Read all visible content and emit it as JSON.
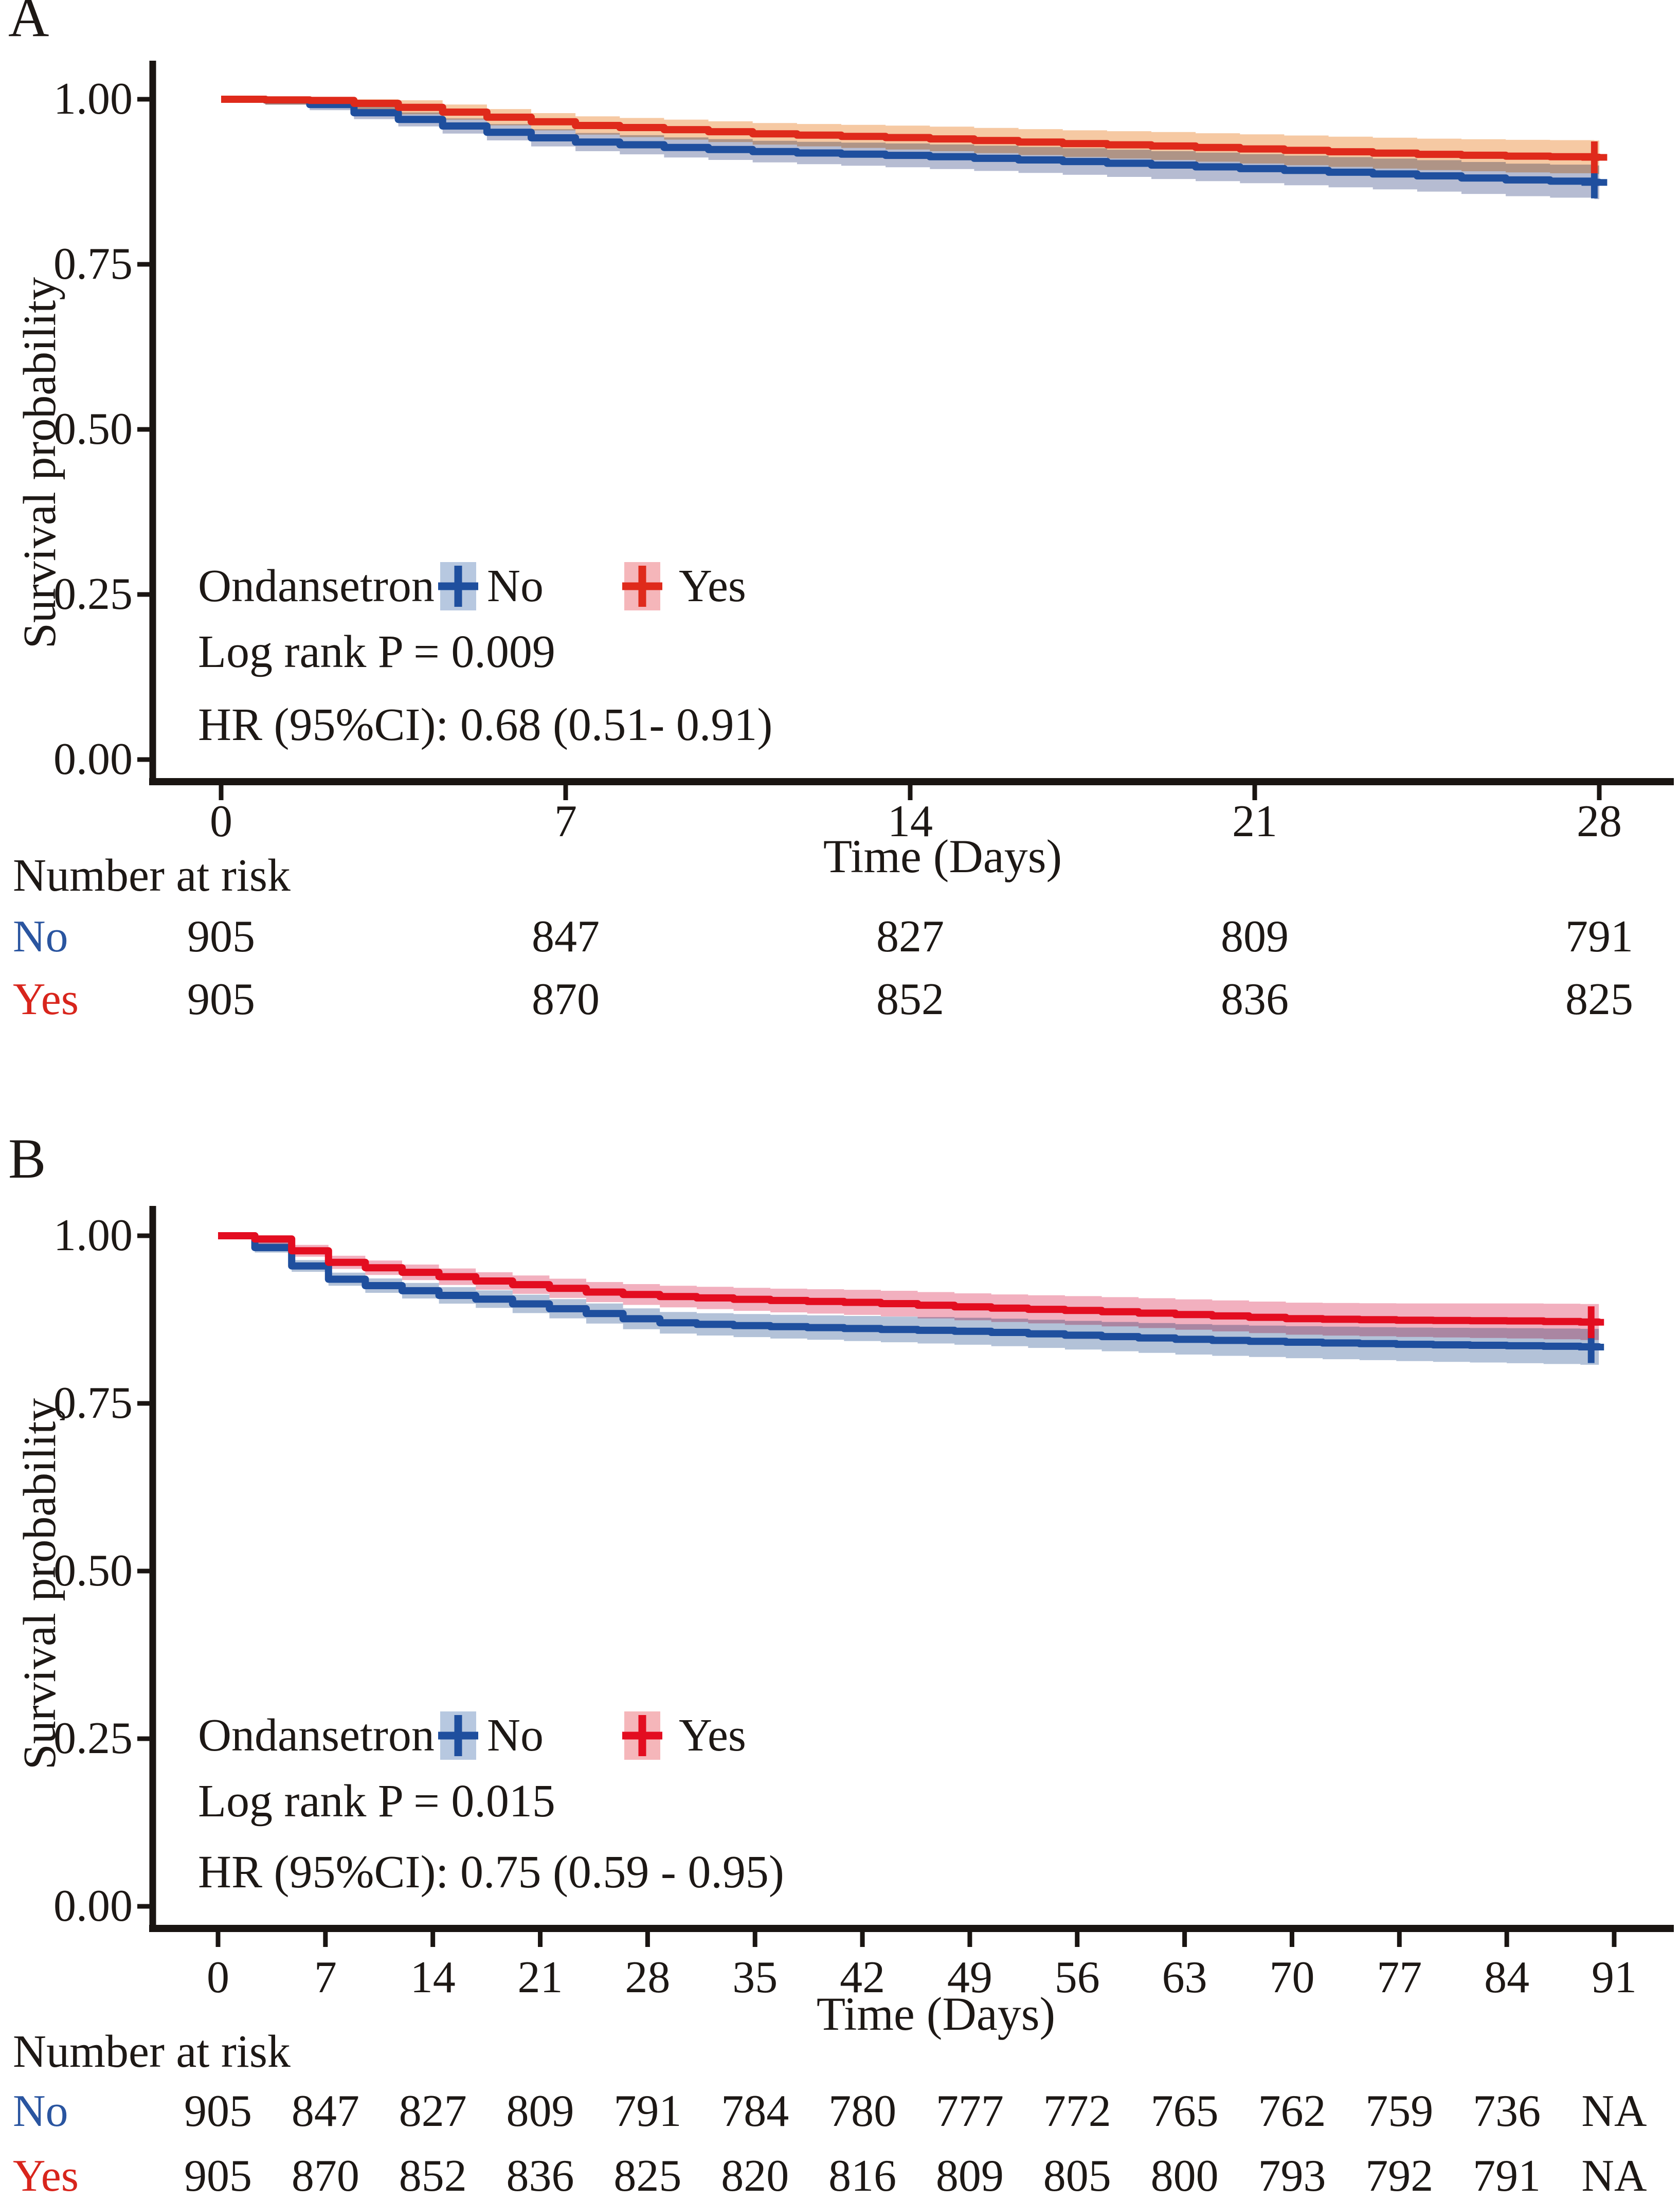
{
  "figure": {
    "kind": "Kaplan-Meier survival figure",
    "panel_count": 2
  },
  "colors": {
    "axis": "#1a1512",
    "text": "#1d1815",
    "no_line": "#1f4f9e",
    "yes_line_a": "#df2a1b",
    "yes_line_b": "#e30d20",
    "no_ribbon_a": "#b6bcd2",
    "yes_ribbon_a": "#f6c9a3",
    "no_ribbon_b": "#b3c2d8",
    "yes_ribbon_b": "#f2b0bf",
    "no_key_bg": "#b7c8e0",
    "yes_key_bg": "#f5b6ba",
    "no_text": "#2a55a0",
    "yes_text": "#d8251c"
  },
  "panels": [
    {
      "label": "A",
      "ylabel": "Survival probability",
      "xlabel": "Time (Days)",
      "y_tick_labels": [
        "1.00",
        "0.75",
        "0.50",
        "0.25",
        "0.00"
      ],
      "legend_title": "Ondansetron",
      "legend_no": "No",
      "legend_yes": "Yes",
      "logrank_text": "Log rank P = 0.009",
      "hr_text": "HR (95%CI): 0.68 (0.51- 0.91)",
      "risk_header": "Number at risk"
    },
    {
      "label": "B",
      "ylabel": "Survival probability",
      "xlabel": "Time (Days)",
      "y_tick_labels": [
        "1.00",
        "0.75",
        "0.50",
        "0.25",
        "0.00"
      ],
      "legend_title": "Ondansetron",
      "legend_no": "No",
      "legend_yes": "Yes",
      "logrank_text": "Log rank P = 0.015",
      "hr_text": "HR (95%CI): 0.75 (0.59 - 0.95)",
      "risk_header": "Number at risk"
    }
  ],
  "chart_data": [
    {
      "type": "line",
      "subtype": "kaplan_meier_step_with_ci_ribbon",
      "panel": "A",
      "title": "",
      "xlabel": "Time (Days)",
      "ylabel": "Survival probability",
      "xlim": [
        0,
        28
      ],
      "ylim": [
        0.0,
        1.0
      ],
      "x_ticks": [
        0,
        7,
        14,
        21,
        28
      ],
      "y_ticks": [
        1.0,
        0.75,
        0.5,
        0.25,
        0.0
      ],
      "grid": false,
      "legend_position": "inside lower-left",
      "legend": {
        "title": "Ondansetron",
        "entries": [
          {
            "name": "No",
            "color": "blue"
          },
          {
            "name": "Yes",
            "color": "red"
          }
        ]
      },
      "annotations": [
        "Log rank P = 0.009",
        "HR (95%CI): 0.68 (0.51- 0.91)"
      ],
      "series": [
        {
          "name": "No",
          "anchors": [
            [
              0,
              1
            ],
            [
              1.5,
              0.998
            ],
            [
              2,
              0.988
            ],
            [
              3,
              0.976
            ],
            [
              4,
              0.965
            ],
            [
              5,
              0.954
            ],
            [
              6,
              0.944
            ],
            [
              7,
              0.936
            ],
            [
              9,
              0.927
            ],
            [
              11,
              0.92
            ],
            [
              14,
              0.914
            ],
            [
              17,
              0.906
            ],
            [
              19,
              0.9
            ],
            [
              21,
              0.894
            ],
            [
              24,
              0.885
            ],
            [
              26,
              0.878
            ],
            [
              28,
              0.874
            ]
          ]
        },
        {
          "name": "Yes",
          "anchors": [
            [
              0,
              1
            ],
            [
              2,
              0.998
            ],
            [
              3,
              0.992
            ],
            [
              4,
              0.985
            ],
            [
              5,
              0.976
            ],
            [
              6,
              0.968
            ],
            [
              7,
              0.961
            ],
            [
              9,
              0.954
            ],
            [
              11,
              0.947
            ],
            [
              14,
              0.941
            ],
            [
              17,
              0.933
            ],
            [
              19,
              0.929
            ],
            [
              21,
              0.924
            ],
            [
              24,
              0.917
            ],
            [
              26,
              0.914
            ],
            [
              28,
              0.912
            ]
          ]
        }
      ],
      "censor_marks": [
        {
          "series": "No",
          "time": 27.9,
          "survival": 0.874
        },
        {
          "series": "Yes",
          "time": 27.9,
          "survival": 0.912
        }
      ],
      "number_at_risk": {
        "times": [
          0,
          7,
          14,
          21,
          28
        ],
        "rows": [
          {
            "group": "No",
            "values": [
              "905",
              "847",
              "827",
              "809",
              "791"
            ]
          },
          {
            "group": "Yes",
            "values": [
              "905",
              "870",
              "852",
              "836",
              "825"
            ]
          }
        ]
      }
    },
    {
      "type": "line",
      "subtype": "kaplan_meier_step_with_ci_ribbon",
      "panel": "B",
      "title": "",
      "xlabel": "Time (Days)",
      "ylabel": "Survival probability",
      "xlim": [
        0,
        91
      ],
      "ylim": [
        0.0,
        1.0
      ],
      "x_ticks": [
        0,
        7,
        14,
        21,
        28,
        35,
        42,
        49,
        56,
        63,
        70,
        77,
        84,
        91
      ],
      "y_ticks": [
        1.0,
        0.75,
        0.5,
        0.25,
        0.0
      ],
      "grid": false,
      "legend_position": "inside lower-left",
      "legend": {
        "title": "Ondansetron",
        "entries": [
          {
            "name": "No",
            "color": "blue"
          },
          {
            "name": "Yes",
            "color": "red"
          }
        ]
      },
      "annotations": [
        "Log rank P = 0.015",
        "HR (95%CI): 0.75 (0.59 - 0.95)"
      ],
      "series": [
        {
          "name": "No",
          "anchors": [
            [
              0,
              1
            ],
            [
              1.5,
              0.998
            ],
            [
              2,
              0.988
            ],
            [
              3,
              0.974
            ],
            [
              4,
              0.963
            ],
            [
              5,
              0.953
            ],
            [
              6,
              0.944
            ],
            [
              7,
              0.936
            ],
            [
              10,
              0.924
            ],
            [
              14,
              0.912
            ],
            [
              17,
              0.905
            ],
            [
              21,
              0.893
            ],
            [
              24,
              0.884
            ],
            [
              28,
              0.871
            ],
            [
              31,
              0.868
            ],
            [
              35,
              0.865
            ],
            [
              42,
              0.861
            ],
            [
              49,
              0.857
            ],
            [
              56,
              0.851
            ],
            [
              63,
              0.845
            ],
            [
              70,
              0.841
            ],
            [
              77,
              0.838
            ],
            [
              84,
              0.836
            ],
            [
              90,
              0.834
            ]
          ]
        },
        {
          "name": "Yes",
          "anchors": [
            [
              0,
              1
            ],
            [
              2,
              0.998
            ],
            [
              3,
              0.991
            ],
            [
              4,
              0.984
            ],
            [
              5,
              0.976
            ],
            [
              6,
              0.968
            ],
            [
              7,
              0.961
            ],
            [
              10,
              0.951
            ],
            [
              14,
              0.94
            ],
            [
              17,
              0.932
            ],
            [
              21,
              0.923
            ],
            [
              24,
              0.916
            ],
            [
              28,
              0.91
            ],
            [
              35,
              0.904
            ],
            [
              42,
              0.9
            ],
            [
              49,
              0.893
            ],
            [
              56,
              0.888
            ],
            [
              63,
              0.882
            ],
            [
              70,
              0.876
            ],
            [
              77,
              0.874
            ],
            [
              84,
              0.873
            ],
            [
              90,
              0.871
            ]
          ]
        }
      ],
      "censor_marks": [
        {
          "series": "No",
          "time": 89.5,
          "survival": 0.834
        },
        {
          "series": "Yes",
          "time": 89.5,
          "survival": 0.871
        }
      ],
      "number_at_risk": {
        "times": [
          0,
          7,
          14,
          21,
          28,
          35,
          42,
          49,
          56,
          63,
          70,
          77,
          84,
          91
        ],
        "rows": [
          {
            "group": "No",
            "values": [
              "905",
              "847",
              "827",
              "809",
              "791",
              "784",
              "780",
              "777",
              "772",
              "765",
              "762",
              "759",
              "736",
              "NA"
            ]
          },
          {
            "group": "Yes",
            "values": [
              "905",
              "870",
              "852",
              "836",
              "825",
              "820",
              "816",
              "809",
              "805",
              "800",
              "793",
              "792",
              "791",
              "NA"
            ]
          }
        ]
      }
    }
  ]
}
